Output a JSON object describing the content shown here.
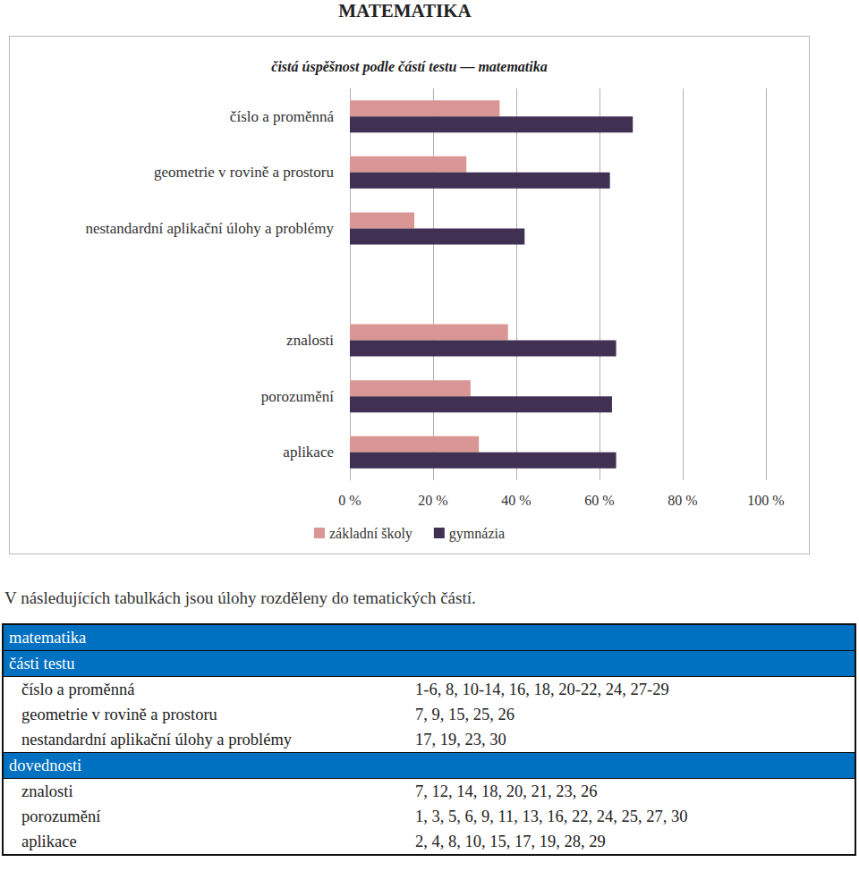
{
  "heading": "MATEMATIKA",
  "chart_data": {
    "type": "bar",
    "orientation": "horizontal",
    "title": "čistá úspěšnost podle částí testu — matematika",
    "categories": [
      "číslo a proměnná",
      "geometrie v rovině a prostoru",
      "nestandardní aplikační úlohy a problémy",
      null,
      "znalosti",
      "porozumění",
      "aplikace"
    ],
    "series": [
      {
        "name": "základní školy",
        "color": "#d99694",
        "values": [
          36,
          28,
          15.5,
          null,
          38,
          29,
          31
        ]
      },
      {
        "name": "gymnázia",
        "color": "#403152",
        "values": [
          68,
          62.5,
          42,
          null,
          64,
          63,
          64
        ]
      }
    ],
    "xlim": [
      0,
      100
    ],
    "xticks": [
      {
        "value": 0,
        "label": "0 %"
      },
      {
        "value": 20,
        "label": "20 %"
      },
      {
        "value": 40,
        "label": "40 %"
      },
      {
        "value": 60,
        "label": "60 %"
      },
      {
        "value": 80,
        "label": "80 %"
      },
      {
        "value": 100,
        "label": "100 %"
      }
    ],
    "grid": true,
    "legend": "bottom"
  },
  "caption": "V následujících tabulkách jsou úlohy rozděleny do tematických částí.",
  "table": {
    "title": "matematika",
    "sections": [
      {
        "header": "části testu",
        "rows": [
          [
            "číslo a proměnná",
            "1-6, 8, 10-14, 16, 18, 20-22, 24, 27-29"
          ],
          [
            "geometrie v rovině a prostoru",
            "7, 9, 15, 25, 26"
          ],
          [
            "nestandardní aplikační úlohy a problémy",
            "17, 19, 23, 30"
          ]
        ]
      },
      {
        "header": "dovednosti",
        "rows": [
          [
            "znalosti",
            "7, 12, 14, 18, 20, 21, 23, 26"
          ],
          [
            "porozumění",
            "1, 3, 5, 6, 9, 11, 13, 16, 22, 24, 25, 27, 30"
          ],
          [
            "aplikace",
            "2, 4, 8, 10, 15, 17, 19, 28, 29"
          ]
        ]
      }
    ]
  }
}
